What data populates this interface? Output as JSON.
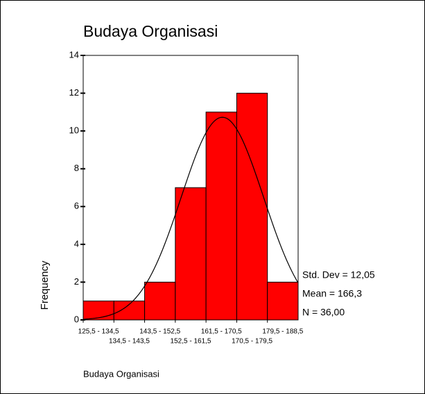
{
  "chart_data": {
    "type": "histogram",
    "title": "Budaya Organisasi",
    "xlabel": "Budaya Organisasi",
    "ylabel": "Frequency",
    "categories": [
      "125,5 - 134,5",
      "134,5 - 143,5",
      "143,5 - 152,5",
      "152,5 - 161,5",
      "161,5 - 170,5",
      "170,5 - 179,5",
      "179,5 - 188,5"
    ],
    "bins": [
      125.5,
      134.5,
      143.5,
      152.5,
      161.5,
      170.5,
      179.5,
      188.5
    ],
    "values": [
      1,
      1,
      2,
      7,
      11,
      12,
      2
    ],
    "color": "#ff0000",
    "ylim": [
      0,
      14
    ],
    "yticks": [
      0,
      2,
      4,
      6,
      8,
      10,
      12,
      14
    ],
    "stats": [
      {
        "value": 12.05,
        "label": "Std. Dev = 12,05"
      },
      {
        "value": 166.3,
        "label": "Mean = 166,3"
      },
      {
        "value": 36,
        "label": "N = 36,00"
      }
    ],
    "normal_curve": true
  }
}
